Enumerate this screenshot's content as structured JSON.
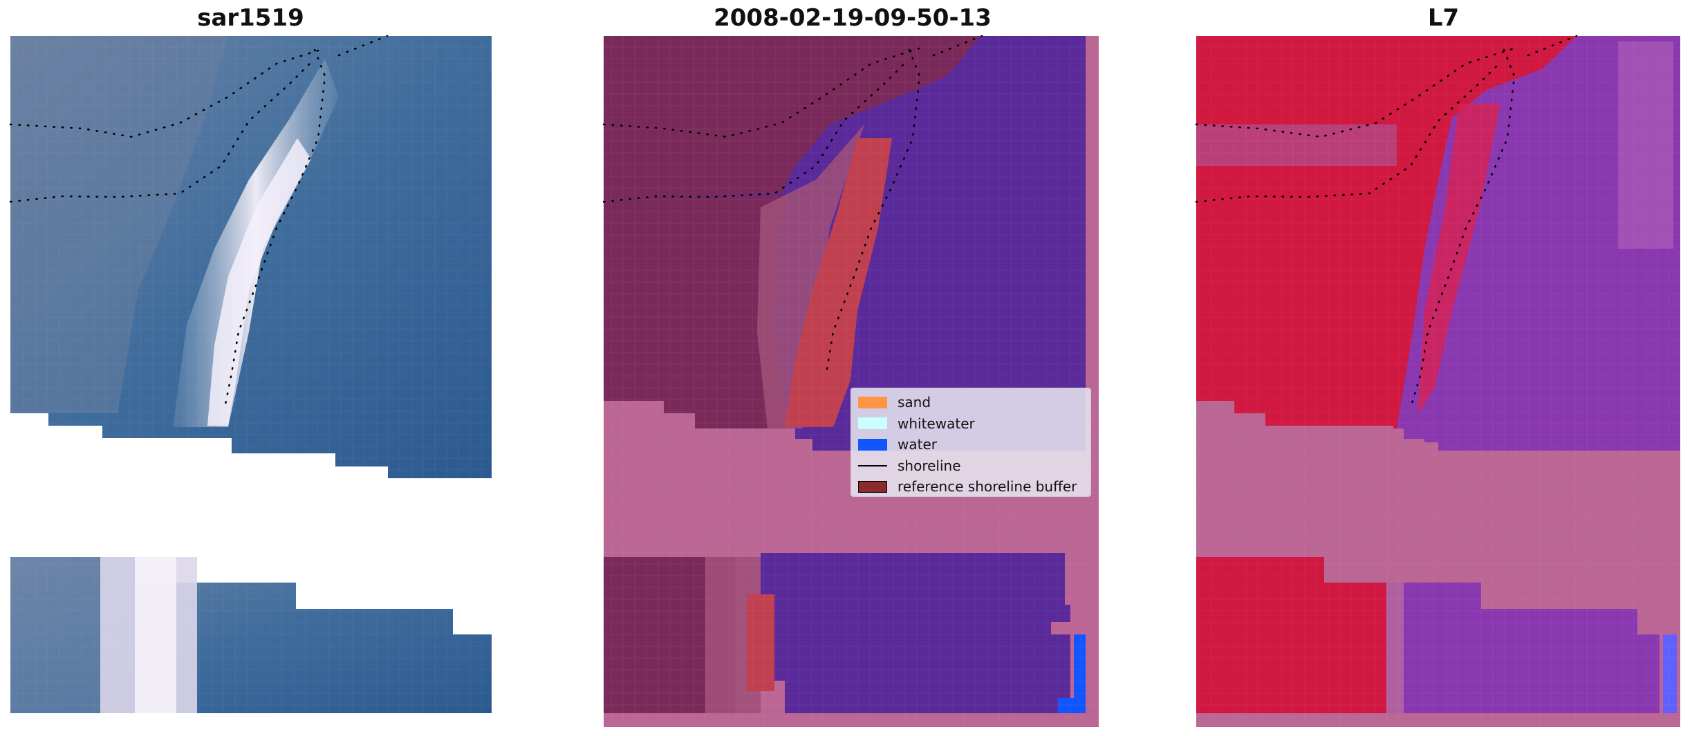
{
  "panels": [
    {
      "title": "sar1519"
    },
    {
      "title": "2008-02-19-09-50-13"
    },
    {
      "title": "L7"
    }
  ],
  "legend": {
    "items": [
      {
        "label": "sand",
        "color": "#ff9445"
      },
      {
        "label": "whitewater",
        "color": "#c9ffff"
      },
      {
        "label": "water",
        "color": "#1155ff"
      },
      {
        "label": "shoreline",
        "color": "#000000"
      },
      {
        "label": "reference shoreline buffer",
        "color": "#8b2a2f"
      }
    ]
  },
  "colors": {
    "rgb_water": "#3a6b9c",
    "rgb_whitewater": "#e8e4f0",
    "class_water": "#5a2a9a",
    "class_land": "#7a2a5a",
    "class_nodata": "#bb6694",
    "class_sand": "#c04050",
    "class_ocean": "#1155ff",
    "l7_land": "#d01840",
    "l7_water": "#8a38b0"
  }
}
